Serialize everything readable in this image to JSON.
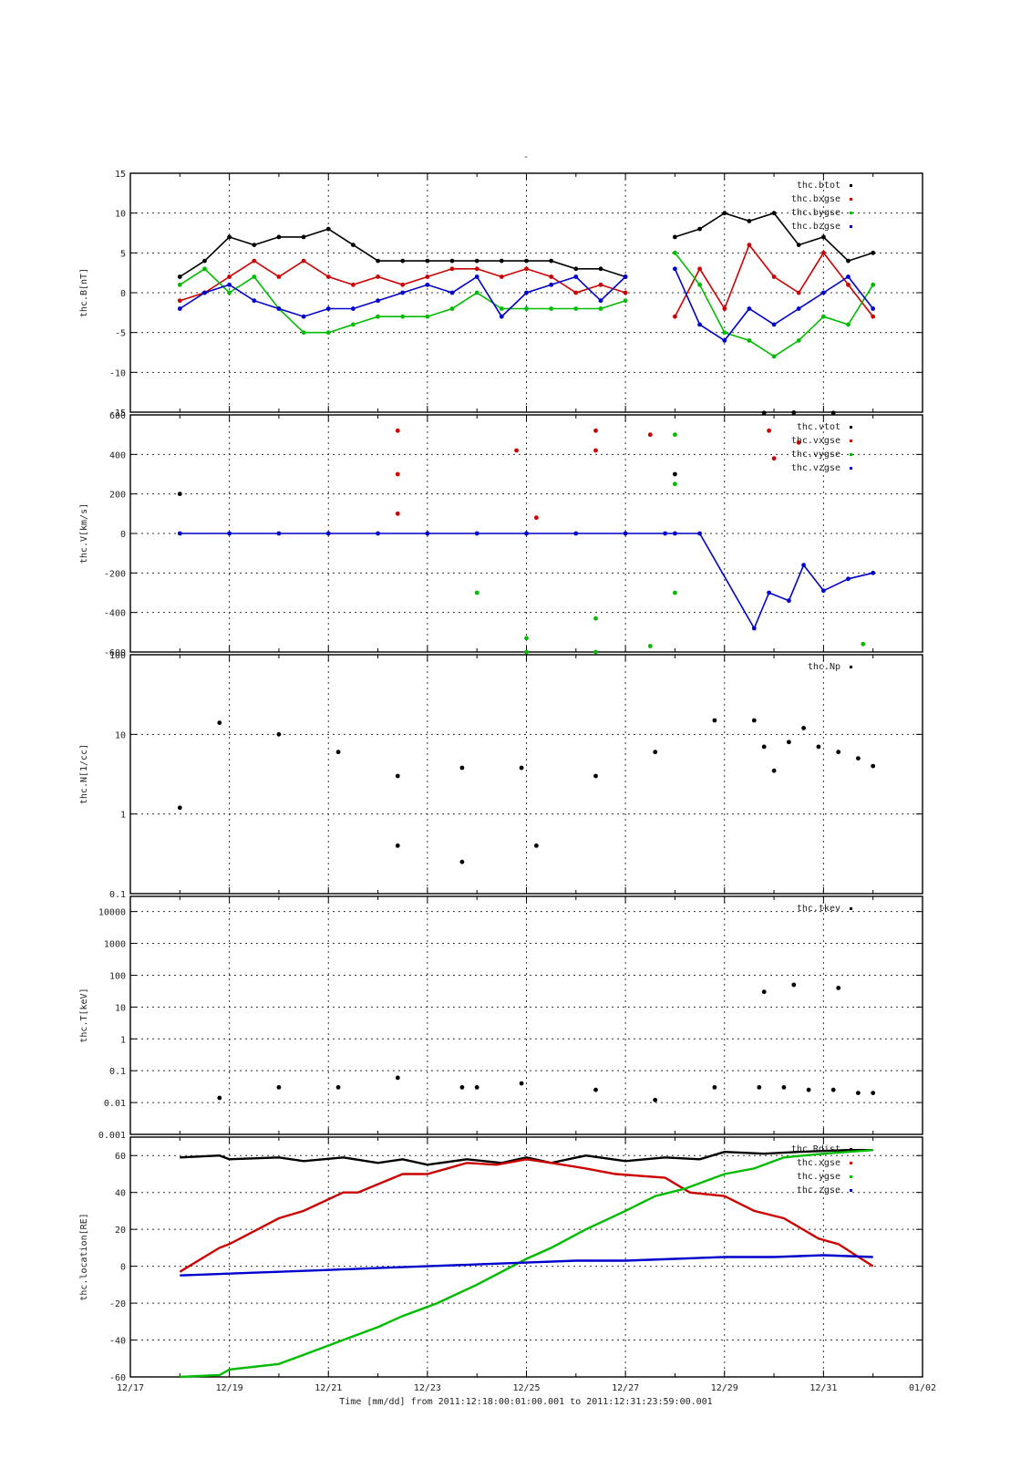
{
  "figure": {
    "title": "-",
    "footer": "Time [mm/dd]  from 2011:12:18:00:01:00.001  to  2011:12:31:23:59:00.001",
    "x_tick_labels": [
      "12/17",
      "12/19",
      "12/21",
      "12/23",
      "12/25",
      "12/27",
      "12/29",
      "12/31",
      "01/02"
    ]
  },
  "chart_data": [
    {
      "id": "panel_b",
      "type": "scatter",
      "ylabel": "thc.B[nT]",
      "xlim": [
        0,
        16
      ],
      "ylim": [
        -15,
        15
      ],
      "scale": "linear",
      "grid": true,
      "legend_position": "top-right",
      "yticks": [
        -15,
        -10,
        -5,
        0,
        5,
        10,
        15
      ],
      "series": [
        {
          "name": "thc.btot",
          "color": "#000000",
          "x": [
            1,
            1.5,
            2,
            2.5,
            3,
            3.5,
            4,
            4.5,
            5,
            5.5,
            6,
            6.5,
            7,
            7.5,
            8,
            8.5,
            9,
            9.5,
            10,
            10.5,
            11,
            11.5,
            12,
            12.5,
            13,
            13.5,
            14,
            14.5,
            15
          ],
          "y": [
            2,
            4,
            7,
            6,
            7,
            7,
            8,
            6,
            4,
            4,
            4,
            4,
            4,
            4,
            4,
            4,
            3,
            3,
            2,
            null,
            7,
            8,
            10,
            9,
            10,
            6,
            7,
            4,
            5
          ]
        },
        {
          "name": "thc.bxgse",
          "color": "#cc0000",
          "x": [
            1,
            1.5,
            2,
            2.5,
            3,
            3.5,
            4,
            4.5,
            5,
            5.5,
            6,
            6.5,
            7,
            7.5,
            8,
            8.5,
            9,
            9.5,
            10,
            10.5,
            11,
            11.5,
            12,
            12.5,
            13,
            13.5,
            14,
            14.5,
            15
          ],
          "y": [
            -1,
            0,
            2,
            4,
            2,
            4,
            2,
            1,
            2,
            1,
            2,
            3,
            3,
            2,
            3,
            2,
            0,
            1,
            0,
            null,
            -3,
            3,
            -2,
            6,
            2,
            0,
            5,
            1,
            -3
          ]
        },
        {
          "name": "thc.bygse",
          "color": "#00bb00",
          "x": [
            1,
            1.5,
            2,
            2.5,
            3,
            3.5,
            4,
            4.5,
            5,
            5.5,
            6,
            6.5,
            7,
            7.5,
            8,
            8.5,
            9,
            9.5,
            10,
            10.5,
            11,
            11.5,
            12,
            12.5,
            13,
            13.5,
            14,
            14.5,
            15
          ],
          "y": [
            1,
            3,
            0,
            2,
            -2,
            -5,
            -5,
            -4,
            -3,
            -3,
            -3,
            -2,
            0,
            -2,
            -2,
            -2,
            -2,
            -2,
            -1,
            null,
            5,
            1,
            -5,
            -6,
            -8,
            -6,
            -3,
            -4,
            1
          ]
        },
        {
          "name": "thc.bzgse",
          "color": "#0000cc",
          "x": [
            1,
            1.5,
            2,
            2.5,
            3,
            3.5,
            4,
            4.5,
            5,
            5.5,
            6,
            6.5,
            7,
            7.5,
            8,
            8.5,
            9,
            9.5,
            10,
            10.5,
            11,
            11.5,
            12,
            12.5,
            13,
            13.5,
            14,
            14.5,
            15
          ],
          "y": [
            -2,
            0,
            1,
            -1,
            -2,
            -3,
            -2,
            -2,
            -1,
            0,
            1,
            0,
            2,
            -3,
            0,
            1,
            2,
            -1,
            2,
            null,
            3,
            -4,
            -6,
            -2,
            -4,
            -2,
            0,
            2,
            -2
          ]
        }
      ]
    },
    {
      "id": "panel_v",
      "type": "scatter",
      "ylabel": "thc.V[km/s]",
      "xlim": [
        0,
        16
      ],
      "ylim": [
        -600,
        600
      ],
      "scale": "linear",
      "grid": true,
      "legend_position": "top-right",
      "yticks": [
        -600,
        -400,
        -200,
        0,
        200,
        400,
        600
      ],
      "series": [
        {
          "name": "thc.vtot",
          "color": "#000000",
          "x": [
            1.0,
            11.0,
            12.8,
            13.4,
            14.2
          ],
          "y": [
            200,
            300,
            610,
            612,
            610
          ]
        },
        {
          "name": "thc.vxgse",
          "color": "#cc0000",
          "x": [
            5.4,
            5.4,
            5.4,
            7.8,
            8.2,
            9.4,
            9.4,
            10.5,
            12.9,
            13.0,
            13.5
          ],
          "y": [
            100,
            300,
            520,
            420,
            80,
            420,
            520,
            500,
            520,
            380,
            460
          ]
        },
        {
          "name": "thc.vygse",
          "color": "#00bb00",
          "x": [
            7.0,
            8.0,
            8.0,
            9.4,
            9.4,
            10.5,
            11.0,
            11.0,
            11.0,
            14.8
          ],
          "y": [
            -300,
            -530,
            -600,
            -430,
            -600,
            -570,
            250,
            -300,
            500,
            -560
          ]
        },
        {
          "name": "thc.vzgse",
          "color": "#0000cc",
          "x": [
            1,
            2,
            3,
            4,
            5,
            6,
            7,
            8,
            9,
            10,
            10.8,
            11,
            11.5,
            12.6,
            12.9,
            13.3,
            13.6,
            14,
            14.5,
            15
          ],
          "y": [
            0,
            0,
            0,
            0,
            0,
            0,
            0,
            0,
            0,
            0,
            0,
            0,
            0,
            -480,
            -300,
            -340,
            -160,
            -290,
            -230,
            -200
          ]
        }
      ]
    },
    {
      "id": "panel_n",
      "type": "scatter",
      "ylabel": "thc.N[1/cc]",
      "xlim": [
        0,
        16
      ],
      "ylim": [
        0.1,
        100
      ],
      "scale": "log",
      "grid": true,
      "legend_position": "top-right",
      "ytick_labels": [
        "0.1",
        "1",
        "10",
        "100"
      ],
      "yticks": [
        0.1,
        1,
        10,
        100
      ],
      "series": [
        {
          "name": "thc.Np",
          "color": "#000000",
          "x": [
            1.0,
            1.8,
            3.0,
            4.2,
            5.4,
            5.4,
            6.7,
            6.7,
            7.9,
            8.2,
            9.4,
            10.6,
            11.8,
            12.6,
            12.8,
            13.0,
            13.3,
            13.6,
            13.9,
            14.3,
            14.7,
            15.0
          ],
          "y": [
            1.2,
            14,
            10,
            6,
            3.0,
            0.4,
            3.8,
            0.25,
            3.8,
            0.4,
            3.0,
            6,
            15,
            15,
            7,
            3.5,
            8,
            12,
            7,
            6,
            5,
            4
          ]
        }
      ]
    },
    {
      "id": "panel_t",
      "type": "scatter",
      "ylabel": "thc.T[keV]",
      "xlim": [
        0,
        16
      ],
      "ylim": [
        0.001,
        30000
      ],
      "scale": "log",
      "grid": true,
      "legend_position": "top-right",
      "ytick_labels": [
        "0.001",
        "0.01",
        "0.1",
        "1",
        "10",
        "100",
        "1000",
        "10000"
      ],
      "yticks": [
        0.001,
        0.01,
        0.1,
        1,
        10,
        100,
        1000,
        10000
      ],
      "series": [
        {
          "name": "thc.tkev",
          "color": "#000000",
          "x": [
            1.8,
            3.0,
            4.2,
            5.4,
            6.7,
            7.0,
            7.9,
            9.4,
            10.6,
            11.8,
            12.7,
            13.2,
            13.7,
            14.2,
            14.7,
            15.0,
            12.8,
            13.4,
            14.3
          ],
          "y": [
            0.014,
            0.03,
            0.03,
            0.06,
            0.03,
            0.03,
            0.04,
            0.025,
            0.012,
            0.03,
            0.03,
            0.03,
            0.025,
            0.025,
            0.02,
            0.02,
            30,
            50,
            40
          ]
        }
      ]
    },
    {
      "id": "panel_loc",
      "type": "line",
      "ylabel": "thc.location[RE]",
      "xlim": [
        0,
        16
      ],
      "ylim": [
        -60,
        70
      ],
      "scale": "linear",
      "grid": true,
      "legend_position": "top-right",
      "yticks": [
        -60,
        -40,
        -20,
        0,
        20,
        40,
        60
      ],
      "series": [
        {
          "name": "thc.Rdist",
          "color": "#000000",
          "x": [
            1,
            1.8,
            2,
            3,
            3.5,
            4.3,
            5,
            5.5,
            6,
            6.8,
            7.5,
            8.0,
            8.5,
            9.2,
            10,
            10.8,
            11.5,
            12.0,
            12.8,
            13.5,
            14.5,
            15.0
          ],
          "y": [
            59,
            60,
            58,
            59,
            57,
            59,
            56,
            58,
            55,
            58,
            56,
            59,
            56,
            60,
            57,
            59,
            58,
            62,
            61,
            62,
            63,
            63
          ]
        },
        {
          "name": "thc.xgse",
          "color": "#cc0000",
          "x": [
            1,
            1.8,
            2,
            3,
            3.5,
            4.3,
            4.6,
            5.5,
            6.0,
            6.8,
            7.4,
            8.0,
            8.5,
            9.2,
            9.8,
            10.8,
            11.3,
            12.0,
            12.6,
            13.2,
            13.9,
            14.3,
            15.0
          ],
          "y": [
            -3,
            10,
            12,
            26,
            30,
            40,
            40,
            50,
            50,
            56,
            55,
            58,
            56,
            53,
            50,
            48,
            40,
            38,
            30,
            26,
            15,
            12,
            0
          ]
        },
        {
          "name": "thc.ygse",
          "color": "#00bb00",
          "x": [
            1,
            1.8,
            2,
            3,
            3.5,
            4.3,
            5,
            5.5,
            6.2,
            7,
            7.5,
            8.0,
            8.5,
            9.2,
            10,
            10.6,
            11.2,
            12.0,
            12.6,
            13.2,
            14.0,
            15.0
          ],
          "y": [
            -60,
            -59,
            -56,
            -53,
            -48,
            -40,
            -33,
            -27,
            -20,
            -10,
            -3,
            4,
            10,
            20,
            30,
            38,
            42,
            50,
            53,
            59,
            61,
            63
          ]
        },
        {
          "name": "thc.zgse",
          "color": "#0000cc",
          "x": [
            1,
            2,
            3,
            4,
            5,
            6,
            7,
            8,
            9,
            10,
            11,
            12,
            13,
            14,
            15
          ],
          "y": [
            -5,
            -4,
            -3,
            -2,
            -1,
            0,
            1,
            2,
            3,
            3,
            4,
            5,
            5,
            6,
            5
          ]
        }
      ]
    }
  ]
}
